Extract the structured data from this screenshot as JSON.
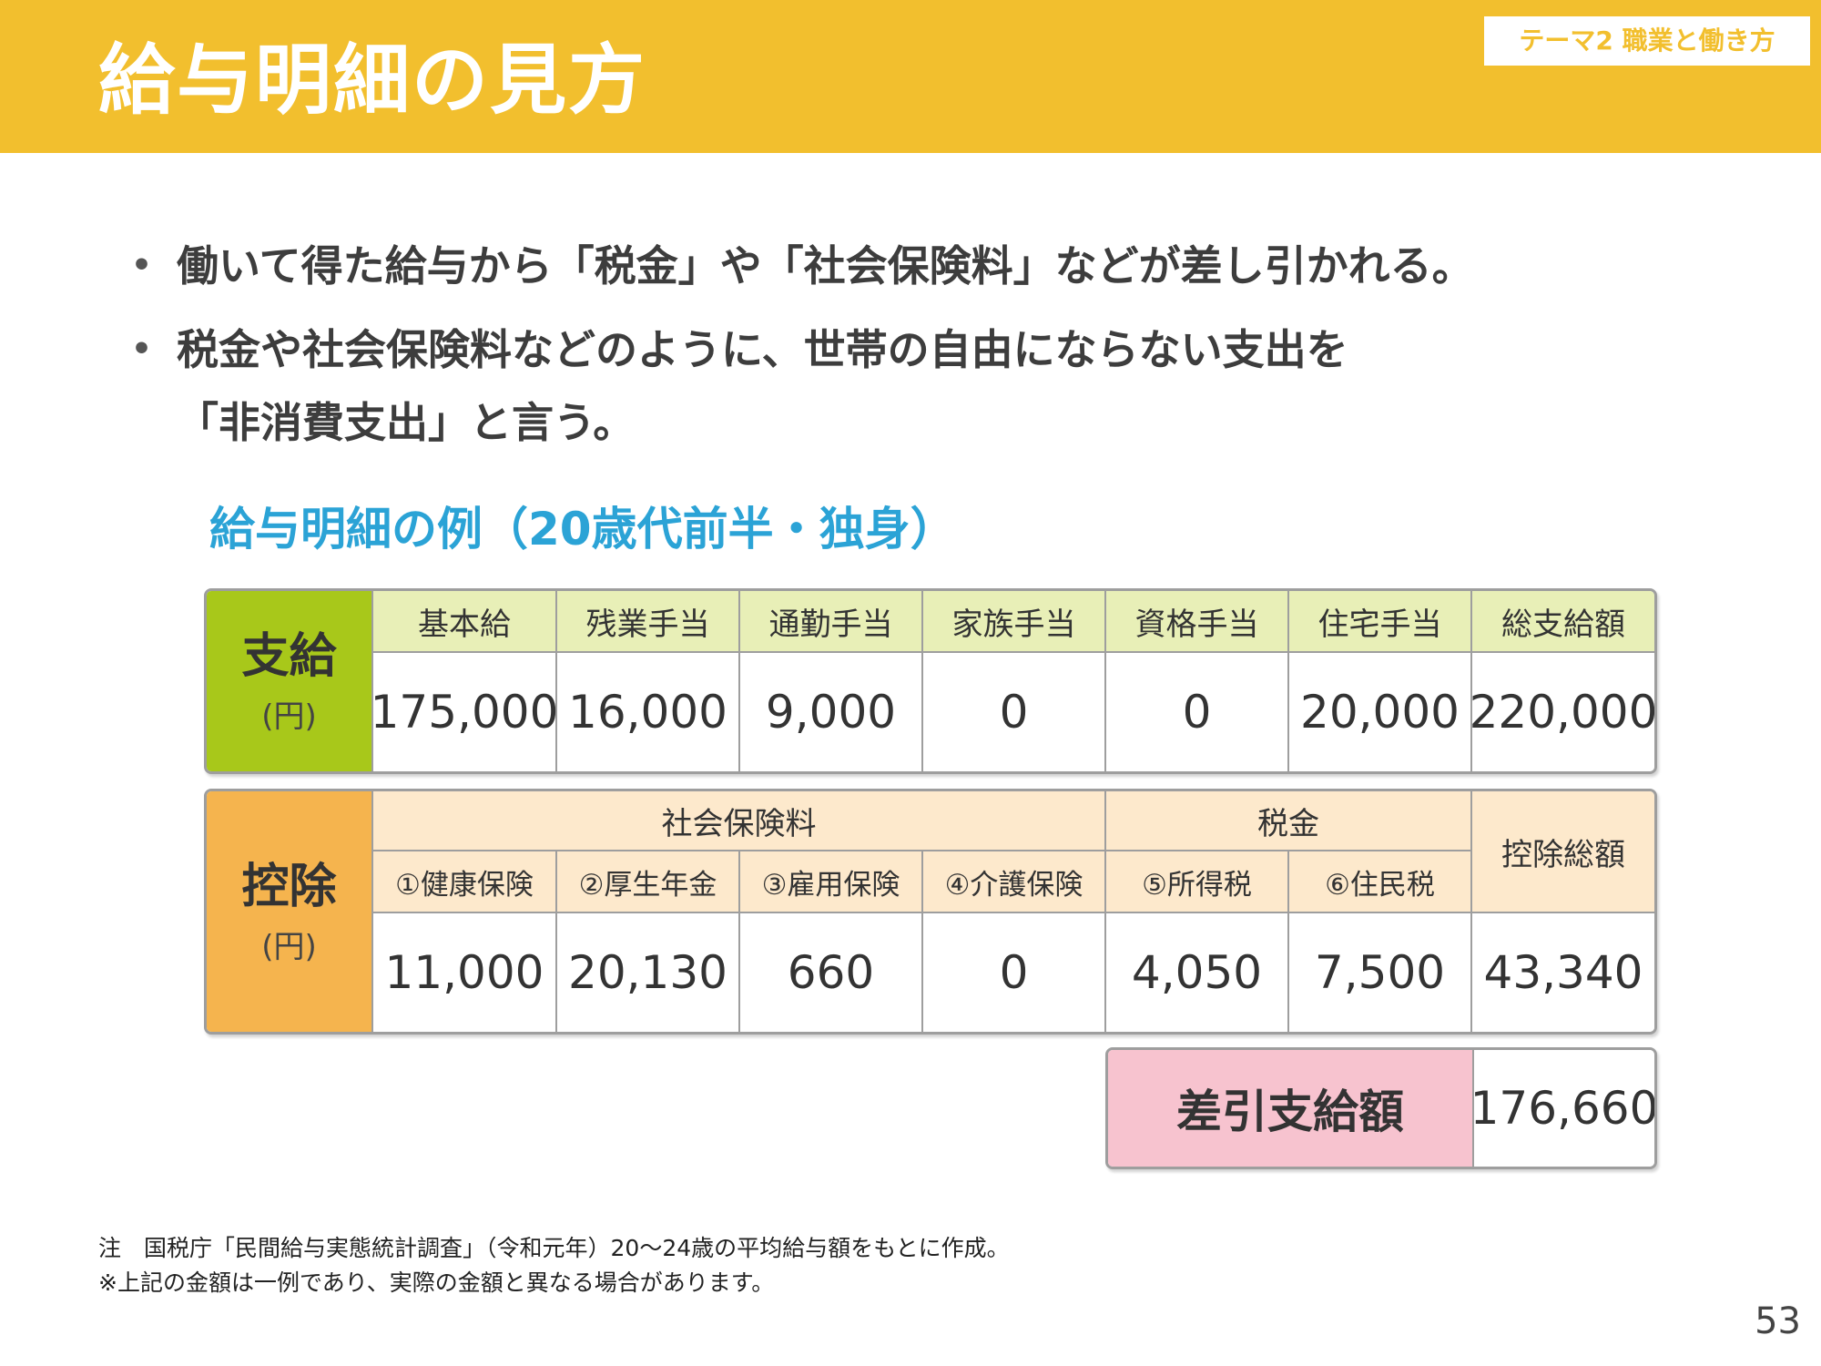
{
  "header": {
    "title": "給与明細の見方",
    "theme": "テーマ2 職業と働き方",
    "bar_color": "#f2bf2e"
  },
  "bullets": [
    {
      "lines": [
        "働いて得た給与から「税金」や「社会保険料」などが差し引かれる。"
      ]
    },
    {
      "lines": [
        "税金や社会保険料などのように、世帯の自由にならない支出を",
        "「非消費支出」と言う。"
      ]
    }
  ],
  "example": {
    "title": "給与明細の例（20歳代前半・独身）",
    "title_color": "#2ba3d6"
  },
  "payment": {
    "label": "支給",
    "unit": "(円)",
    "color": "#a8c81a",
    "headers": [
      "基本給",
      "残業手当",
      "通勤手当",
      "家族手当",
      "資格手当",
      "住宅手当",
      "総支給額"
    ],
    "values": [
      "175,000",
      "16,000",
      "9,000",
      "0",
      "0",
      "20,000",
      "220,000"
    ]
  },
  "deduction": {
    "label": "控除",
    "unit": "(円)",
    "color": "#f5b44e",
    "group_social": "社会保険料",
    "group_tax": "税金",
    "total_header": "控除総額",
    "headers": [
      "①健康保険",
      "②厚生年金",
      "③雇用保険",
      "④介護保険",
      "⑤所得税",
      "⑥住民税"
    ],
    "values": [
      "11,000",
      "20,130",
      "660",
      "0",
      "4,050",
      "7,500",
      "43,340"
    ]
  },
  "net": {
    "label": "差引支給額",
    "value": "176,660",
    "color": "#f7c3cf"
  },
  "notes": [
    "注　国税庁「民間給与実態統計調査」（令和元年）20～24歳の平均給与額をもとに作成。",
    "※上記の金額は一例であり、実際の金額と異なる場合があります。"
  ],
  "page_number": "53"
}
